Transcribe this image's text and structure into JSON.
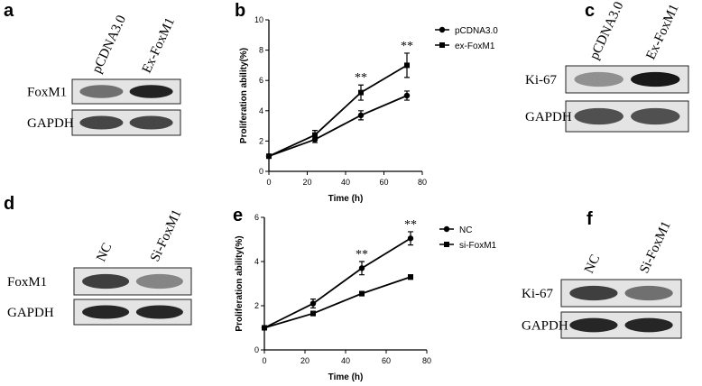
{
  "panels": [
    {
      "letter": "a",
      "lanes": [
        "pCDNA3.0",
        "Ex-FoxM1"
      ],
      "rows": [
        "FoxM1",
        "GAPDH"
      ]
    },
    {
      "letter": "c",
      "lanes": [
        "pCDNA3.0",
        "Ex-FoxM1"
      ],
      "rows": [
        "Ki-67",
        "GAPDH"
      ]
    },
    {
      "letter": "d",
      "lanes": [
        "NC",
        "Si-FoxM1"
      ],
      "rows": [
        "FoxM1",
        "GAPDH"
      ]
    },
    {
      "letter": "f",
      "lanes": [
        "NC",
        "Si-FoxM1"
      ],
      "rows": [
        "Ki-67",
        "GAPDH"
      ]
    }
  ],
  "chart_data": [
    {
      "type": "line",
      "panel_label": "b",
      "x_label": "Time (h)",
      "y_label": "Proliferation ability(%)",
      "x": [
        0,
        24,
        48,
        72
      ],
      "xlim": [
        0,
        80
      ],
      "xticks": [
        0,
        20,
        40,
        60,
        80
      ],
      "ylim": [
        0,
        10
      ],
      "yticks": [
        0,
        2,
        4,
        6,
        8,
        10
      ],
      "series": [
        {
          "name": "pCDNA3.0",
          "color": "#000000",
          "marker": "circle",
          "values": [
            1,
            2.1,
            3.7,
            5.0
          ],
          "errors": [
            0,
            0.2,
            0.3,
            0.3
          ]
        },
        {
          "name": "ex-FoxM1",
          "color": "#000000",
          "marker": "square",
          "values": [
            1,
            2.4,
            5.2,
            7.0
          ],
          "errors": [
            0,
            0.3,
            0.5,
            0.8
          ]
        }
      ],
      "annotations": [
        "**",
        "**"
      ]
    },
    {
      "type": "line",
      "panel_label": "e",
      "x_label": "Time (h)",
      "y_label": "Proliferation ability(%)",
      "x": [
        0,
        24,
        48,
        72
      ],
      "xlim": [
        0,
        80
      ],
      "xticks": [
        0,
        20,
        40,
        60,
        80
      ],
      "ylim": [
        0,
        6
      ],
      "yticks": [
        0,
        2,
        4,
        6
      ],
      "series": [
        {
          "name": "NC",
          "color": "#000000",
          "marker": "circle",
          "values": [
            1,
            2.1,
            3.7,
            5.05
          ],
          "errors": [
            0,
            0.2,
            0.3,
            0.3
          ]
        },
        {
          "name": "si-FoxM1",
          "color": "#000000",
          "marker": "square",
          "values": [
            1,
            1.65,
            2.55,
            3.3
          ],
          "errors": [
            0,
            0.1,
            0.1,
            0.1
          ]
        }
      ],
      "annotations": [
        "**",
        "**"
      ]
    }
  ]
}
